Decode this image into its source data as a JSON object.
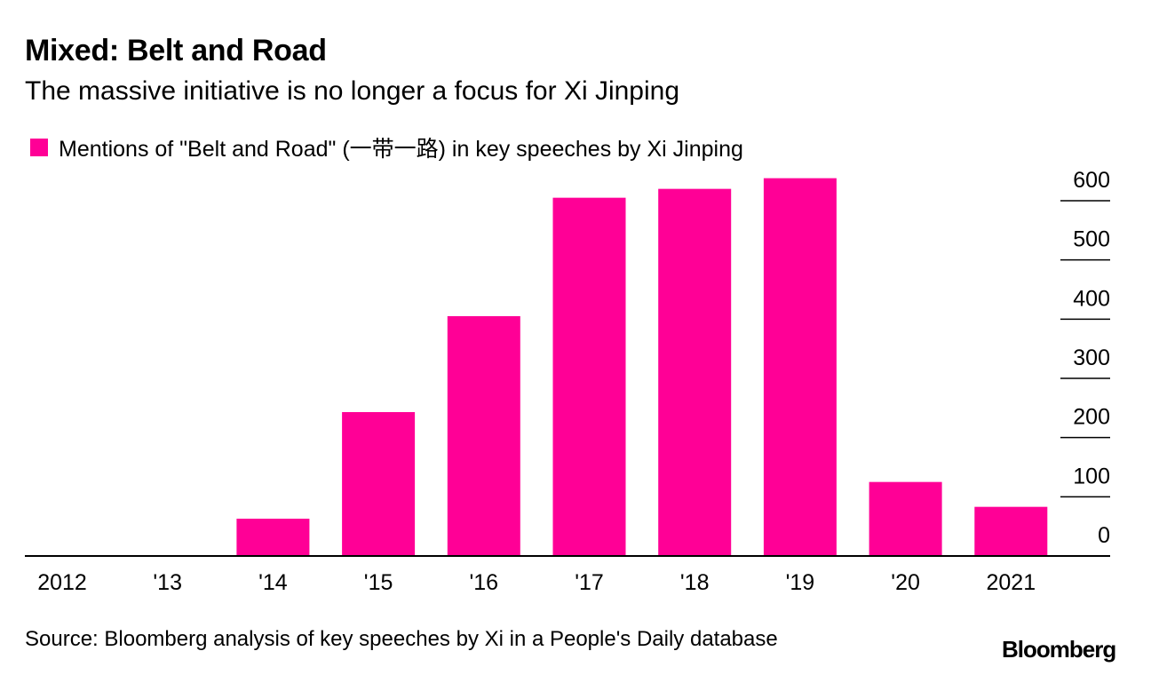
{
  "colors": {
    "bar": "#ff0096",
    "axis": "#000000"
  },
  "chart_data": {
    "type": "bar",
    "title": "Mixed: Belt and Road",
    "subtitle": "The massive initiative is no longer a focus for Xi Jinping",
    "legend": "Mentions of \"Belt and Road\" (一带一路) in key speeches by Xi Jinping",
    "categories": [
      "2012",
      "'13",
      "'14",
      "'15",
      "'16",
      "'17",
      "'18",
      "'19",
      "'20",
      "2021"
    ],
    "values": [
      0,
      0,
      63,
      243,
      405,
      605,
      620,
      638,
      125,
      83
    ],
    "ylim": [
      0,
      600
    ],
    "yticks": [
      0,
      100,
      200,
      300,
      400,
      500,
      600
    ],
    "y_axis_side": "right",
    "source": "Source: Bloomberg analysis of key speeches by Xi in a People's Daily database"
  },
  "brand": "Bloomberg"
}
